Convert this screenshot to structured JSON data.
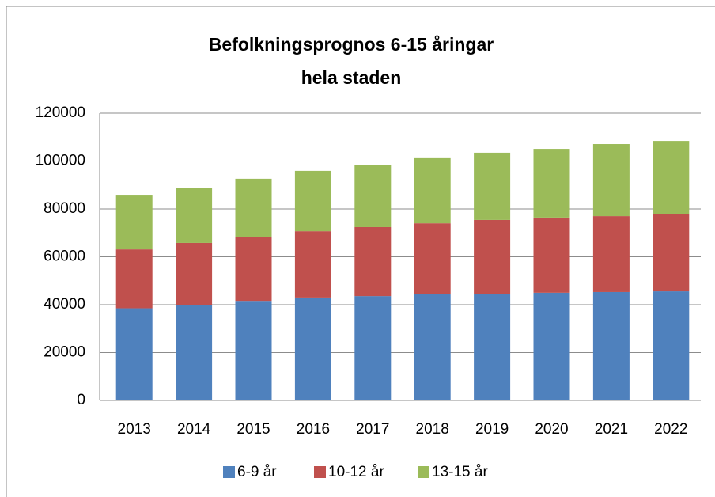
{
  "chart_data": {
    "type": "stacked_bar",
    "title": "Befolkningsprognos 6-15 åringar",
    "subtitle": "hela staden",
    "categories": [
      "2013",
      "2014",
      "2015",
      "2016",
      "2017",
      "2018",
      "2019",
      "2020",
      "2021",
      "2022"
    ],
    "series": [
      {
        "name": "6-9 år",
        "color": "#4f81bd",
        "values": [
          38500,
          40000,
          41600,
          43000,
          43600,
          44300,
          44600,
          45000,
          45300,
          45600
        ]
      },
      {
        "name": "10-12 år",
        "color": "#c0504d",
        "values": [
          24600,
          25800,
          26800,
          27700,
          28800,
          29700,
          30800,
          31400,
          31700,
          32100
        ]
      },
      {
        "name": "13-15 år",
        "color": "#9bbb59",
        "values": [
          22500,
          23100,
          24200,
          25200,
          26100,
          27200,
          28100,
          28700,
          30100,
          30700
        ]
      }
    ],
    "ylim": [
      0,
      120000
    ],
    "yticks": [
      0,
      20000,
      40000,
      60000,
      80000,
      100000,
      120000
    ],
    "grid": true,
    "legend": "bottom"
  }
}
